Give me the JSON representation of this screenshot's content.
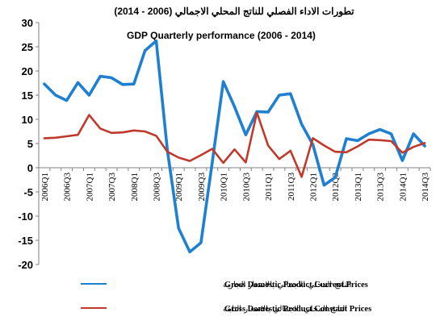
{
  "chart_data": {
    "type": "line",
    "title_ar": "تطورات الاداء الفصلي للناتج المحلي الاجمالي (2006 - 2014)",
    "title": "GDP Quarterly performance  (2006 - 2014)",
    "ylim": [
      -20,
      30
    ],
    "yticks": [
      "30",
      "25",
      "20",
      "15",
      "10",
      "5",
      "0",
      "-5",
      "-10",
      "-15",
      "-20"
    ],
    "x": [
      "2006Q1",
      "2006Q2",
      "2006Q3",
      "2006Q4",
      "2007Q1",
      "2007Q2",
      "2007Q3",
      "2007Q4",
      "2008Q1",
      "2008Q2",
      "2008Q3",
      "2008Q4",
      "2009Q1",
      "2009Q2",
      "2009Q3",
      "2009Q4",
      "2010Q1",
      "2010Q2",
      "2010Q3",
      "2010Q4",
      "2011Q1",
      "2011Q2",
      "2011Q3",
      "2011Q4",
      "2012Q1",
      "2012Q2",
      "2012Q3",
      "2012Q4",
      "2013Q1",
      "2013Q2",
      "2013Q3",
      "2013Q4",
      "2014Q1",
      "2014Q2",
      "2014Q3"
    ],
    "xtick_labels": [
      "2006Q1",
      "2006Q3",
      "2007Q1",
      "2007Q3",
      "2008Q1",
      "2008Q3",
      "2009Q1",
      "2009Q3",
      "2010Q1",
      "2010Q3",
      "2011Q1",
      "2011Q3",
      "2012Q1",
      "2012Q3",
      "2013Q1",
      "2013Q3",
      "2014Q1",
      "2014Q3"
    ],
    "grid": false,
    "legend_position": "bottom",
    "series": [
      {
        "name": "Gross Domestic Product Current Prices",
        "name_ar": "الناتج المحلي الاجمالي بالاسعار الجارية",
        "color": "#1f7fd0",
        "values": [
          17.3,
          15.0,
          13.9,
          17.6,
          15.0,
          18.9,
          18.6,
          17.2,
          17.3,
          24.2,
          26.2,
          3.5,
          -12.5,
          -17.4,
          -15.5,
          1.0,
          17.8,
          12.6,
          6.8,
          11.6,
          11.5,
          15.0,
          15.3,
          9.0,
          4.8,
          -3.6,
          -2.0,
          6.0,
          5.6,
          7.0,
          7.9,
          7.0,
          1.5,
          7.0,
          4.5
        ]
      },
      {
        "name": "Gross Domestic Product Constant Prices",
        "name_ar": "الناتج المحلي الاجمالي بالاسعار الثابتة",
        "color": "#c0392b",
        "values": [
          6.1,
          6.2,
          6.5,
          6.8,
          10.9,
          8.1,
          7.2,
          7.3,
          7.7,
          7.5,
          6.6,
          3.3,
          2.1,
          1.4,
          2.6,
          3.9,
          1.0,
          3.8,
          1.1,
          11.4,
          4.6,
          1.8,
          3.5,
          -1.9,
          6.1,
          4.6,
          3.3,
          3.2,
          4.4,
          5.8,
          5.7,
          5.5,
          3.1,
          4.3,
          5.1
        ]
      }
    ]
  }
}
